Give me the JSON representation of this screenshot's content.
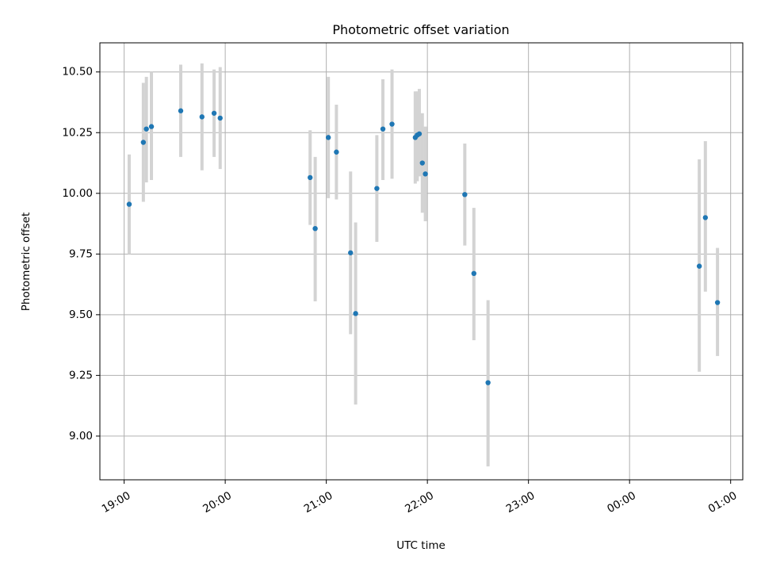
{
  "chart_data": {
    "type": "scatter",
    "title": "Photometric offset variation",
    "xlabel": "UTC time",
    "ylabel": "Photometric offset",
    "x_unit": "hours (UTC, continuous from 19:00 day 1)",
    "xlim": [
      18.76,
      25.12
    ],
    "ylim": [
      8.82,
      10.62
    ],
    "x_ticks": [
      {
        "value": 19,
        "label": "19:00"
      },
      {
        "value": 20,
        "label": "20:00"
      },
      {
        "value": 21,
        "label": "21:00"
      },
      {
        "value": 22,
        "label": "22:00"
      },
      {
        "value": 23,
        "label": "23:00"
      },
      {
        "value": 24,
        "label": "00:00"
      },
      {
        "value": 25,
        "label": "01:00"
      }
    ],
    "y_ticks": [
      {
        "value": 9.0,
        "label": "9.00"
      },
      {
        "value": 9.25,
        "label": "9.25"
      },
      {
        "value": 9.5,
        "label": "9.50"
      },
      {
        "value": 9.75,
        "label": "9.75"
      },
      {
        "value": 10.0,
        "label": "10.00"
      },
      {
        "value": 10.25,
        "label": "10.25"
      },
      {
        "value": 10.5,
        "label": "10.50"
      }
    ],
    "grid": true,
    "point_color": "#1f77b4",
    "errorbar_color": "#d3d3d3",
    "points": [
      {
        "x": 19.05,
        "y": 9.955,
        "lo": 9.75,
        "hi": 10.16
      },
      {
        "x": 19.19,
        "y": 10.21,
        "lo": 9.965,
        "hi": 10.455
      },
      {
        "x": 19.22,
        "y": 10.265,
        "lo": 10.045,
        "hi": 10.48
      },
      {
        "x": 19.27,
        "y": 10.275,
        "lo": 10.055,
        "hi": 10.5
      },
      {
        "x": 19.56,
        "y": 10.34,
        "lo": 10.15,
        "hi": 10.53
      },
      {
        "x": 19.77,
        "y": 10.315,
        "lo": 10.095,
        "hi": 10.535
      },
      {
        "x": 19.89,
        "y": 10.33,
        "lo": 10.15,
        "hi": 10.51
      },
      {
        "x": 19.95,
        "y": 10.31,
        "lo": 10.1,
        "hi": 10.52
      },
      {
        "x": 20.84,
        "y": 10.065,
        "lo": 9.87,
        "hi": 10.26
      },
      {
        "x": 20.89,
        "y": 9.855,
        "lo": 9.555,
        "hi": 10.15
      },
      {
        "x": 21.02,
        "y": 10.23,
        "lo": 9.98,
        "hi": 10.48
      },
      {
        "x": 21.1,
        "y": 10.17,
        "lo": 9.975,
        "hi": 10.365
      },
      {
        "x": 21.24,
        "y": 9.755,
        "lo": 9.42,
        "hi": 10.09
      },
      {
        "x": 21.29,
        "y": 9.505,
        "lo": 9.13,
        "hi": 9.88
      },
      {
        "x": 21.5,
        "y": 10.02,
        "lo": 9.8,
        "hi": 10.24
      },
      {
        "x": 21.56,
        "y": 10.265,
        "lo": 10.055,
        "hi": 10.47
      },
      {
        "x": 21.65,
        "y": 10.285,
        "lo": 10.06,
        "hi": 10.51
      },
      {
        "x": 21.88,
        "y": 10.23,
        "lo": 10.04,
        "hi": 10.42
      },
      {
        "x": 21.9,
        "y": 10.24,
        "lo": 10.05,
        "hi": 10.42
      },
      {
        "x": 21.92,
        "y": 10.245,
        "lo": 10.07,
        "hi": 10.43
      },
      {
        "x": 21.95,
        "y": 10.125,
        "lo": 9.92,
        "hi": 10.33
      },
      {
        "x": 21.98,
        "y": 10.08,
        "lo": 9.885,
        "hi": 10.275
      },
      {
        "x": 22.37,
        "y": 9.995,
        "lo": 9.785,
        "hi": 10.205
      },
      {
        "x": 22.46,
        "y": 9.67,
        "lo": 9.395,
        "hi": 9.94
      },
      {
        "x": 22.6,
        "y": 9.22,
        "lo": 8.875,
        "hi": 9.56
      },
      {
        "x": 24.69,
        "y": 9.7,
        "lo": 9.265,
        "hi": 10.14
      },
      {
        "x": 24.75,
        "y": 9.9,
        "lo": 9.595,
        "hi": 10.215
      },
      {
        "x": 24.87,
        "y": 9.55,
        "lo": 9.33,
        "hi": 9.775
      }
    ]
  }
}
